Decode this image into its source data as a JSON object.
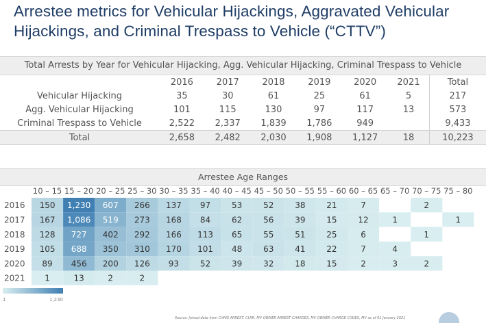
{
  "title": {
    "line1": "Arrestee metrics for Vehicular Hijackings, Aggravated Vehicular",
    "line2": "Hijackings, and Criminal Trespass to Vehicle (“CTTV”)"
  },
  "arrests_table": {
    "heading": "Total Arrests by Year for Vehicular Hijacking, Agg. Vehicular Hijacking, Criminal Trespass to Vehicle",
    "columns": [
      "2016",
      "2017",
      "2018",
      "2019",
      "2020",
      "2021",
      "Total"
    ],
    "rows": [
      {
        "label": "Vehicular Hijacking",
        "values": [
          "35",
          "30",
          "61",
          "25",
          "61",
          "5",
          "217"
        ]
      },
      {
        "label": "Agg. Vehicular Hijacking",
        "values": [
          "101",
          "115",
          "130",
          "97",
          "117",
          "13",
          "573"
        ]
      },
      {
        "label": "Criminal Trespass to Vehicle",
        "values": [
          "2,522",
          "2,337",
          "1,839",
          "1,786",
          "949",
          "",
          "9,433"
        ]
      },
      {
        "label": "Total",
        "values": [
          "2,658",
          "2,482",
          "2,030",
          "1,908",
          "1,127",
          "18",
          "10,223"
        ]
      }
    ]
  },
  "chart_data": {
    "type": "heatmap",
    "title": "Arrestee Age Ranges",
    "x_categories": [
      "10 – 15",
      "15 – 20",
      "20 – 25",
      "25 – 30",
      "30 – 35",
      "35 – 40",
      "40 – 45",
      "45 – 50",
      "50 – 55",
      "55 – 60",
      "60 – 65",
      "65 – 70",
      "70 – 75",
      "75 – 80"
    ],
    "y_categories": [
      "2016",
      "2017",
      "2018",
      "2019",
      "2020",
      "2021"
    ],
    "values": [
      [
        150,
        1230,
        607,
        266,
        137,
        97,
        53,
        52,
        38,
        21,
        7,
        null,
        2,
        null
      ],
      [
        167,
        1086,
        519,
        273,
        168,
        84,
        62,
        56,
        39,
        15,
        12,
        1,
        null,
        1
      ],
      [
        128,
        727,
        402,
        292,
        166,
        113,
        65,
        55,
        51,
        25,
        6,
        null,
        1,
        null
      ],
      [
        105,
        688,
        350,
        310,
        170,
        101,
        48,
        63,
        41,
        22,
        7,
        4,
        null,
        null
      ],
      [
        89,
        456,
        200,
        126,
        93,
        52,
        39,
        32,
        18,
        15,
        2,
        3,
        2,
        null
      ],
      [
        1,
        13,
        2,
        2,
        null,
        null,
        null,
        null,
        null,
        null,
        null,
        null,
        null,
        null
      ]
    ],
    "color_scale": {
      "min": 1,
      "max": 1230,
      "min_label": "1",
      "max_label": "1,230",
      "low_color": "#d9eef0",
      "high_color": "#3f7fb2"
    }
  },
  "source_note": "Source: Joined data from CHRIS ARREST, CLRR, MV OWNER ARREST CHARGES, MV OWNER CHARGE CODES, MV as of 01 January 2021"
}
